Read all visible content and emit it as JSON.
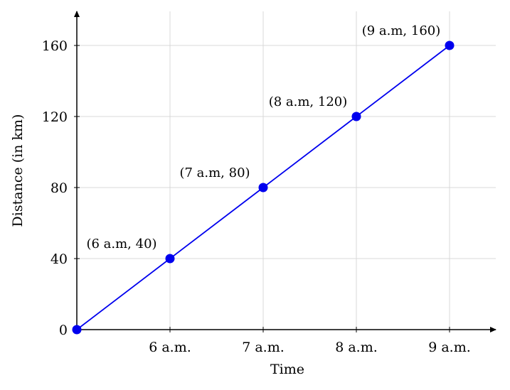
{
  "chart_data": {
    "type": "line",
    "title": "",
    "xlabel": "Time",
    "ylabel": "Distance (in km)",
    "x_tick_labels": [
      "6 a.m.",
      "7 a.m.",
      "8 a.m.",
      "9 a.m."
    ],
    "y_ticks": [
      0,
      40,
      80,
      120,
      160
    ],
    "y_tick_labels": [
      "0",
      "40",
      "80",
      "120",
      "160"
    ],
    "xlim": [
      5,
      9.5
    ],
    "ylim": [
      0,
      180
    ],
    "grid": true,
    "legend": "none",
    "color": "#0000ee",
    "series": [
      {
        "x": [
          5,
          6,
          7,
          8,
          9
        ],
        "values": [
          0,
          40,
          80,
          120,
          160
        ],
        "point_labels": [
          "",
          "(6 a.m, 40)",
          "(7 a.m, 80)",
          "(8 a.m, 120)",
          "(9 a.m, 160)"
        ]
      }
    ]
  }
}
